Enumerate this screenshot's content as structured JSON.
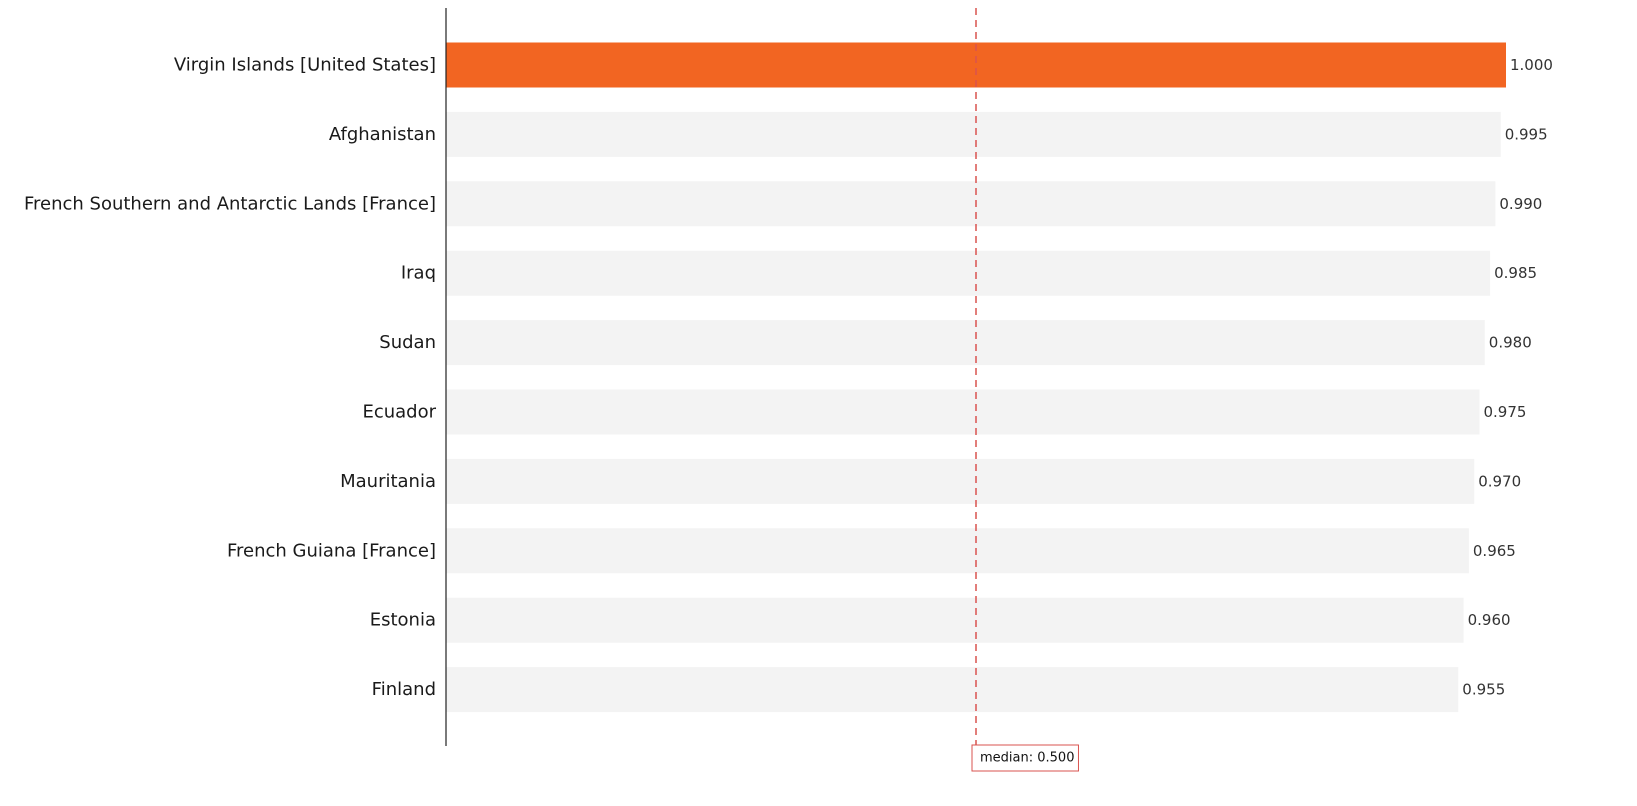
{
  "chart_data": {
    "type": "bar",
    "orientation": "horizontal",
    "categories": [
      "Virgin Islands [United States]",
      "Afghanistan",
      "French Southern and Antarctic Lands [France]",
      "Iraq",
      "Sudan",
      "Ecuador",
      "Mauritania",
      "French Guiana [France]",
      "Estonia",
      "Finland"
    ],
    "values": [
      1.0,
      0.995,
      0.99,
      0.985,
      0.98,
      0.975,
      0.97,
      0.965,
      0.96,
      0.955
    ],
    "value_labels": [
      "1.000",
      "0.995",
      "0.990",
      "0.985",
      "0.980",
      "0.975",
      "0.970",
      "0.965",
      "0.960",
      "0.955"
    ],
    "highlight_index": 0,
    "median": {
      "value": 0.5,
      "label": "median: 0.500"
    },
    "xlim": [
      0,
      1.0
    ],
    "grid": false,
    "colors": {
      "highlight": "#f26522",
      "bar": "#f3f3f3",
      "median_line": "#d9534f",
      "median_box_border": "#d9534f",
      "axis": "#222222"
    }
  }
}
